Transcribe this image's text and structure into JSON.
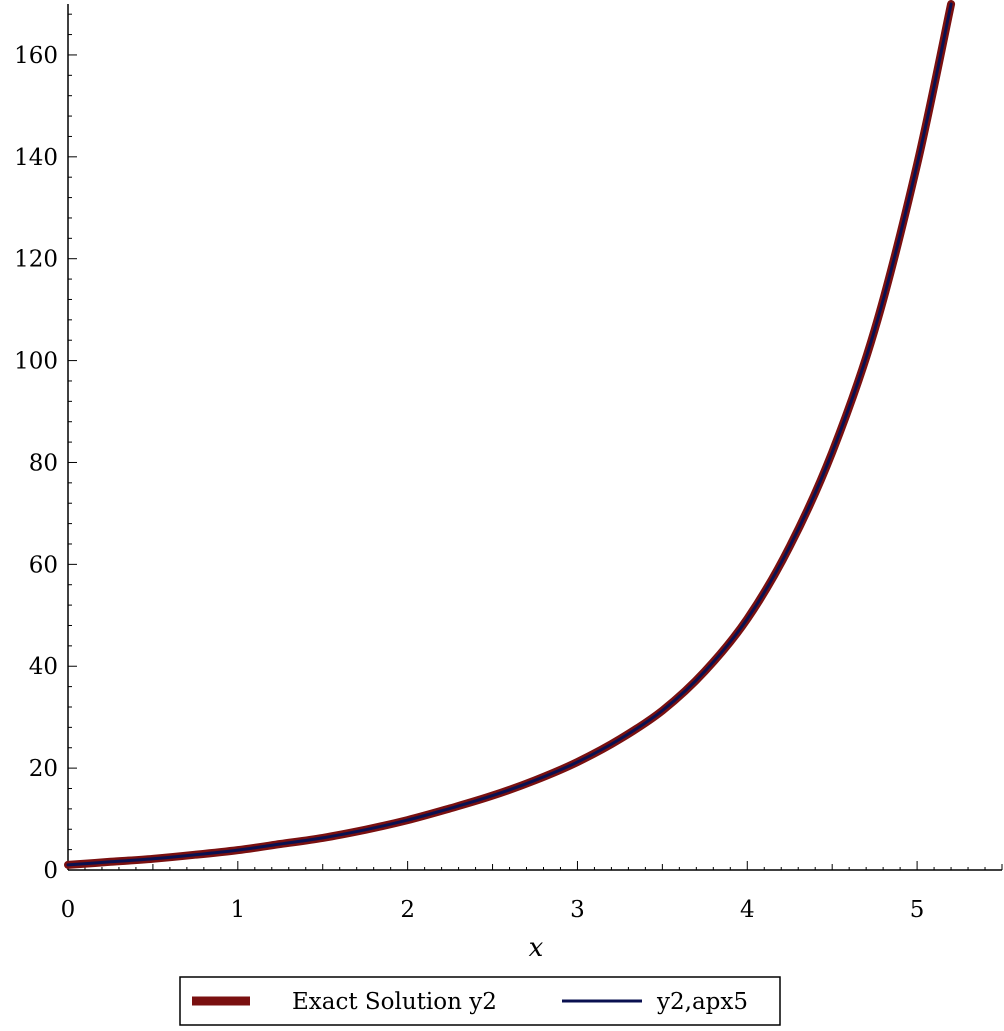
{
  "chart_data": {
    "type": "line",
    "title": "",
    "xlabel": "x",
    "ylabel": "",
    "xlim": [
      0,
      5.5
    ],
    "ylim": [
      0,
      170
    ],
    "x_ticks": [
      0,
      1,
      2,
      3,
      4,
      5
    ],
    "y_ticks": [
      0,
      20,
      40,
      60,
      80,
      100,
      120,
      140,
      160
    ],
    "grid": false,
    "legend_position": "bottom",
    "series": [
      {
        "name": "Exact Solution y2",
        "color": "#7a1010",
        "style": "thick-solid",
        "x": [
          0,
          0.25,
          0.5,
          0.75,
          1.0,
          1.25,
          1.5,
          1.75,
          2.0,
          2.25,
          2.5,
          2.75,
          3.0,
          3.25,
          3.5,
          3.75,
          4.0,
          4.25,
          4.5,
          4.75,
          5.0,
          5.2
        ],
        "y": [
          1.0,
          1.6,
          2.2,
          3.0,
          3.9,
          5.1,
          6.3,
          7.9,
          9.8,
          12.1,
          14.6,
          17.6,
          21.2,
          25.7,
          31.3,
          39.0,
          49.3,
          63.5,
          82.0,
          106.0,
          138.5,
          170.0
        ]
      },
      {
        "name": "y2,apx5",
        "color": "#0a1050",
        "style": "thin-solid",
        "x": [
          0,
          0.25,
          0.5,
          0.75,
          1.0,
          1.25,
          1.5,
          1.75,
          2.0,
          2.25,
          2.5,
          2.75,
          3.0,
          3.25,
          3.5,
          3.75,
          4.0,
          4.25,
          4.5,
          4.75,
          5.0,
          5.2
        ],
        "y": [
          1.0,
          1.6,
          2.2,
          3.0,
          3.9,
          5.1,
          6.3,
          7.9,
          9.8,
          12.1,
          14.6,
          17.6,
          21.2,
          25.7,
          31.3,
          39.0,
          49.3,
          63.5,
          82.0,
          106.0,
          138.5,
          170.0
        ]
      }
    ]
  }
}
